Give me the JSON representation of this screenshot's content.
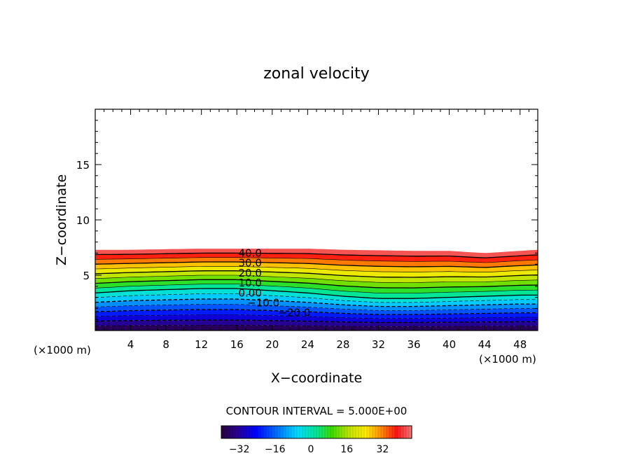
{
  "chart_data": {
    "type": "heatmap",
    "subtype": "filled contour",
    "title": "zonal velocity",
    "xlabel": "X−coordinate",
    "ylabel": "Z−coordinate",
    "x_unit_left": "(×1000 m)",
    "x_unit_right": "(×1000 m)",
    "x_range": [
      0,
      50
    ],
    "y_range": [
      0,
      20
    ],
    "x_ticks": [
      4,
      8,
      12,
      16,
      20,
      24,
      28,
      32,
      36,
      40,
      44,
      48
    ],
    "y_ticks": [
      5,
      10,
      15
    ],
    "contour_interval_label": "CONTOUR INTERVAL = 5.000E+00",
    "contour_interval": 5,
    "contour_labels": [
      {
        "text": "40.0",
        "x": 17.5,
        "z": 7.0
      },
      {
        "text": "30.0",
        "x": 17.5,
        "z": 6.1
      },
      {
        "text": "20.0",
        "x": 17.5,
        "z": 5.2
      },
      {
        "text": "10.0",
        "x": 17.5,
        "z": 4.3
      },
      {
        "text": "0.00",
        "x": 17.5,
        "z": 3.4
      },
      {
        "text": "−10.0",
        "x": 19.0,
        "z": 2.5
      },
      {
        "text": "−20.0",
        "x": 22.5,
        "z": 1.6
      }
    ],
    "field_profile": {
      "x": [
        0,
        4,
        8,
        12,
        16,
        20,
        24,
        28,
        32,
        36,
        40,
        44,
        48,
        50
      ],
      "top_z": [
        7.3,
        7.3,
        7.35,
        7.4,
        7.4,
        7.4,
        7.4,
        7.3,
        7.25,
        7.2,
        7.2,
        7.0,
        7.2,
        7.3
      ],
      "zero_contour_z": [
        3.4,
        3.6,
        3.7,
        3.8,
        3.8,
        3.6,
        3.4,
        3.1,
        2.9,
        2.9,
        3.0,
        3.1,
        3.2,
        3.2
      ],
      "surface_value": 45,
      "bottom_value": -40
    },
    "colorbar": {
      "min": -40,
      "max": 45,
      "ticks": [
        -32,
        -16,
        0,
        16,
        32
      ],
      "tick_labels": [
        "−32",
        "−16",
        "0",
        "16",
        "32"
      ]
    },
    "grid": false
  }
}
